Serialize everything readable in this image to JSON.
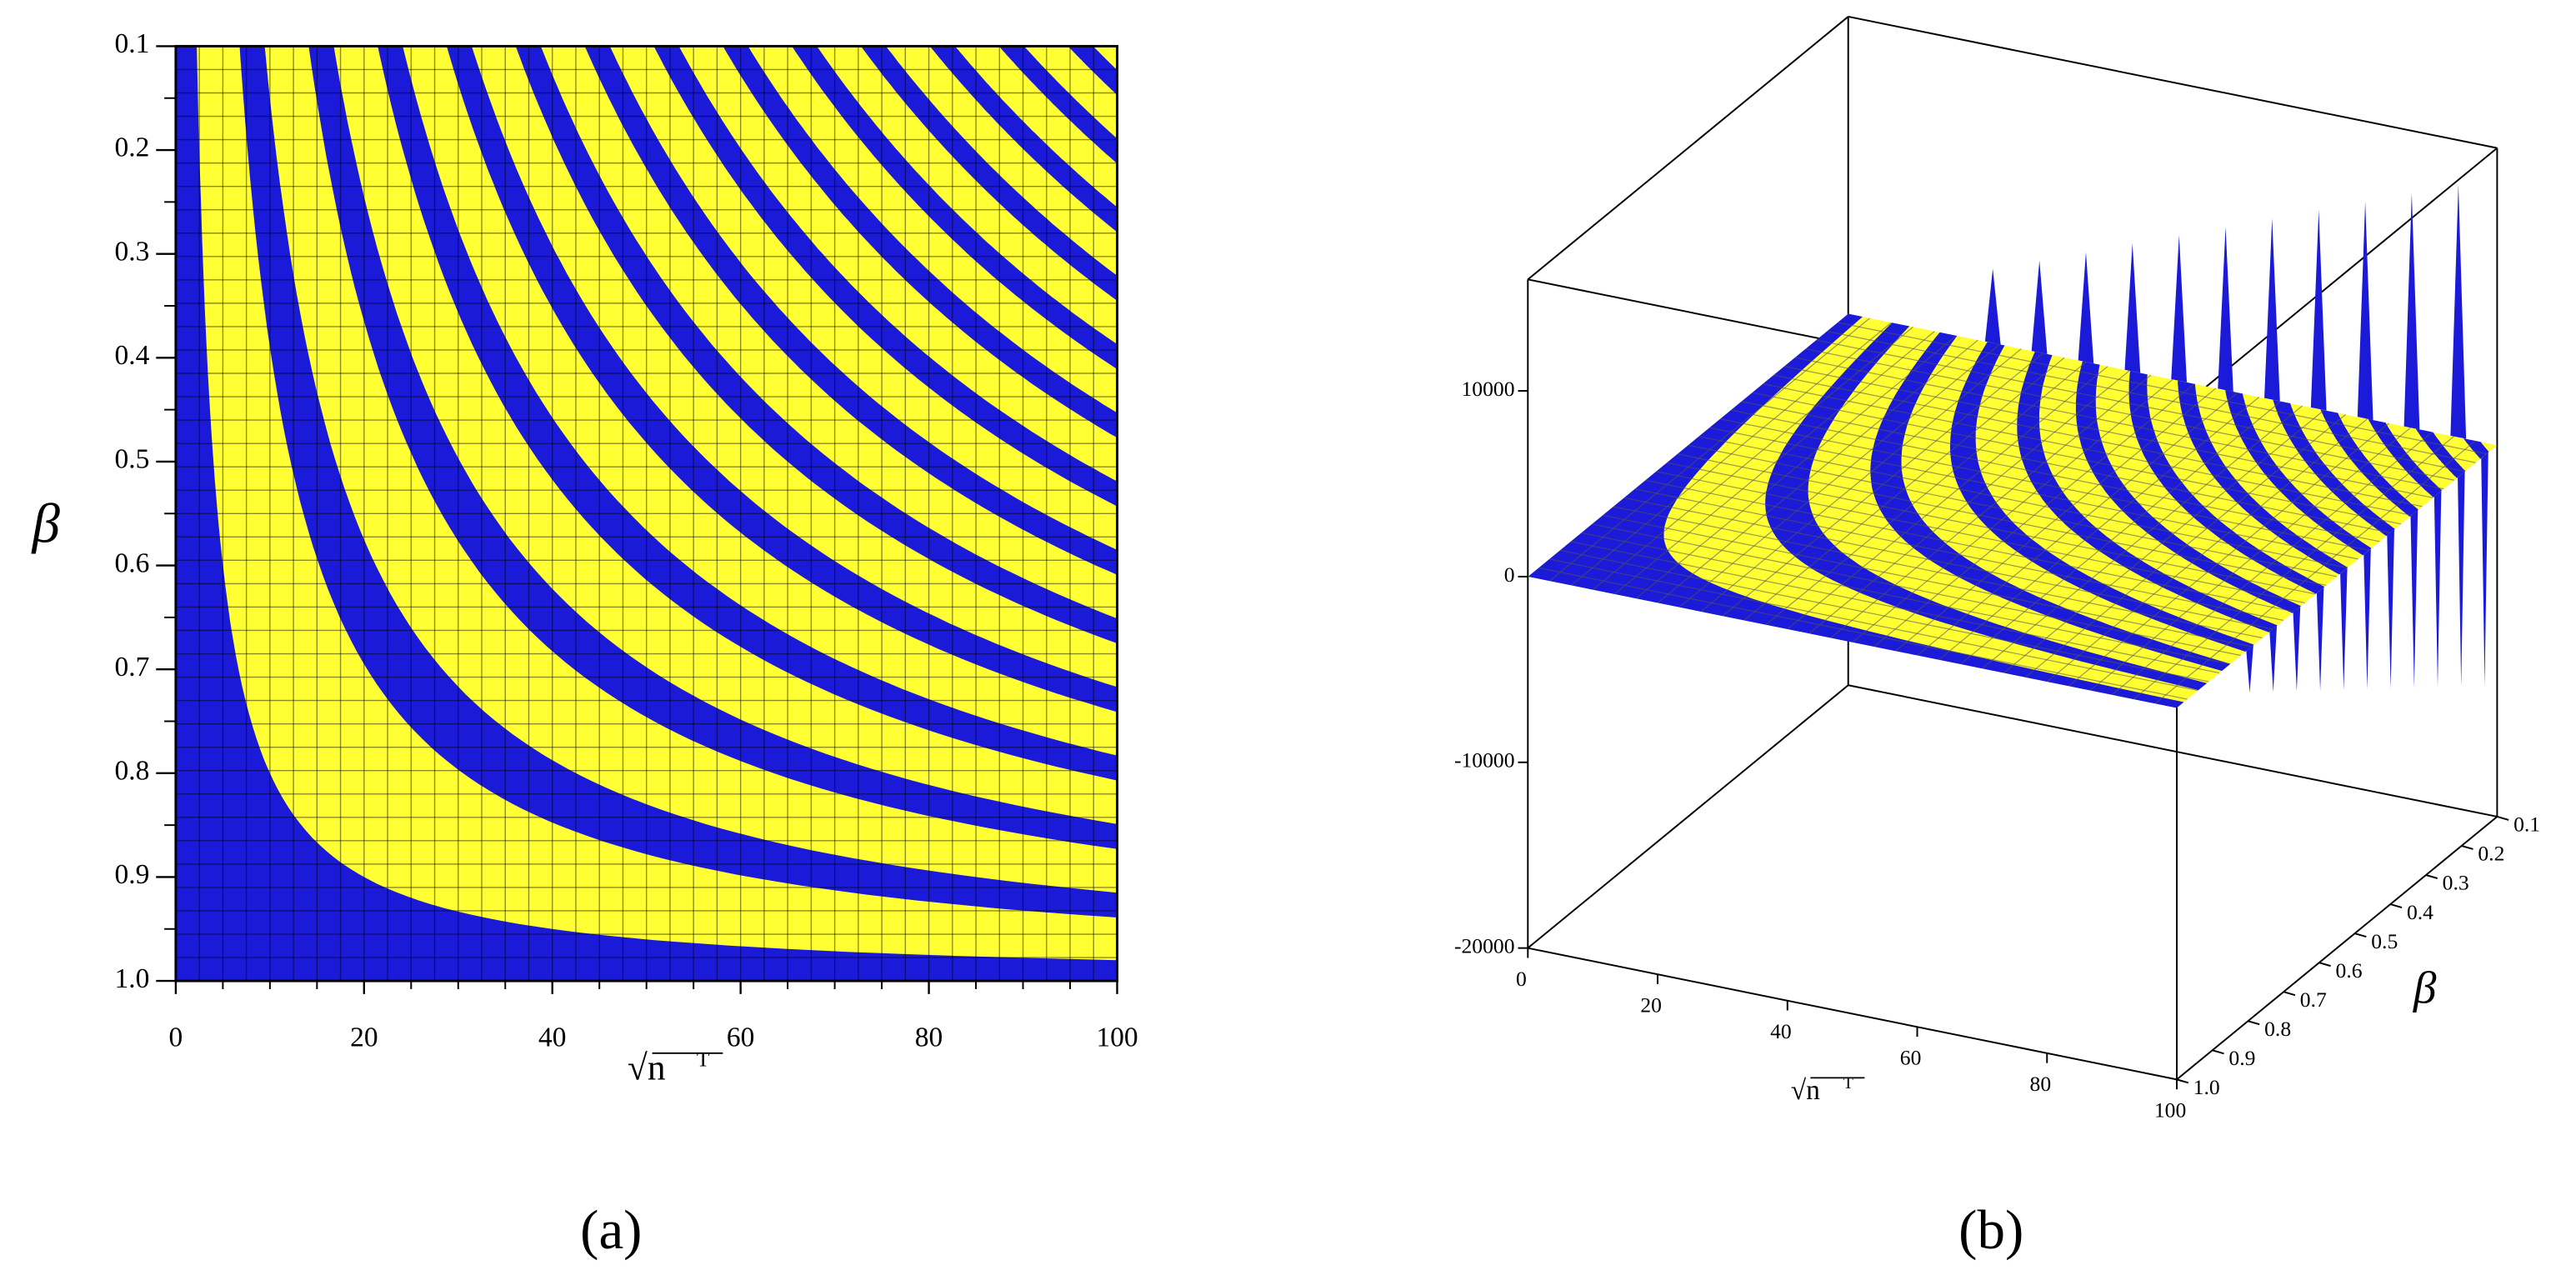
{
  "chart_data": [
    {
      "type": "contour",
      "panel": "(a)",
      "xlabel": "√n",
      "xlabel_sup": "T",
      "ylabel": "β",
      "xlim": [
        0,
        100
      ],
      "ylim": [
        1,
        0.1
      ],
      "xticks": [
        0,
        20,
        40,
        60,
        80,
        100
      ],
      "yticks": [
        0.1,
        0.2,
        0.3,
        0.4,
        0.5,
        0.6,
        0.7,
        0.8,
        0.9,
        {
          "value": 1,
          "label": "1.0"
        }
      ],
      "colors": [
        "#ffff33",
        "#1a1ad8"
      ],
      "grid": true
    },
    {
      "type": "surface3d",
      "panel": "(b)",
      "xlabel": "√n",
      "xlabel_sup": "T",
      "ylabel": "β",
      "xlim": [
        0,
        100
      ],
      "ylim": [
        1,
        0.1
      ],
      "zlim": [
        -20000,
        16000
      ],
      "xticks": [
        0,
        20,
        40,
        60,
        80,
        100
      ],
      "yticks": [
        0.1,
        0.2,
        0.3,
        0.4,
        0.5,
        0.6,
        0.7,
        0.8,
        0.9,
        {
          "value": 1,
          "label": "1.0"
        }
      ],
      "zticks": [
        -20000,
        -10000,
        0,
        10000
      ],
      "colors": [
        "#ffff33",
        "#1a1ad8"
      ],
      "grid": true
    }
  ]
}
